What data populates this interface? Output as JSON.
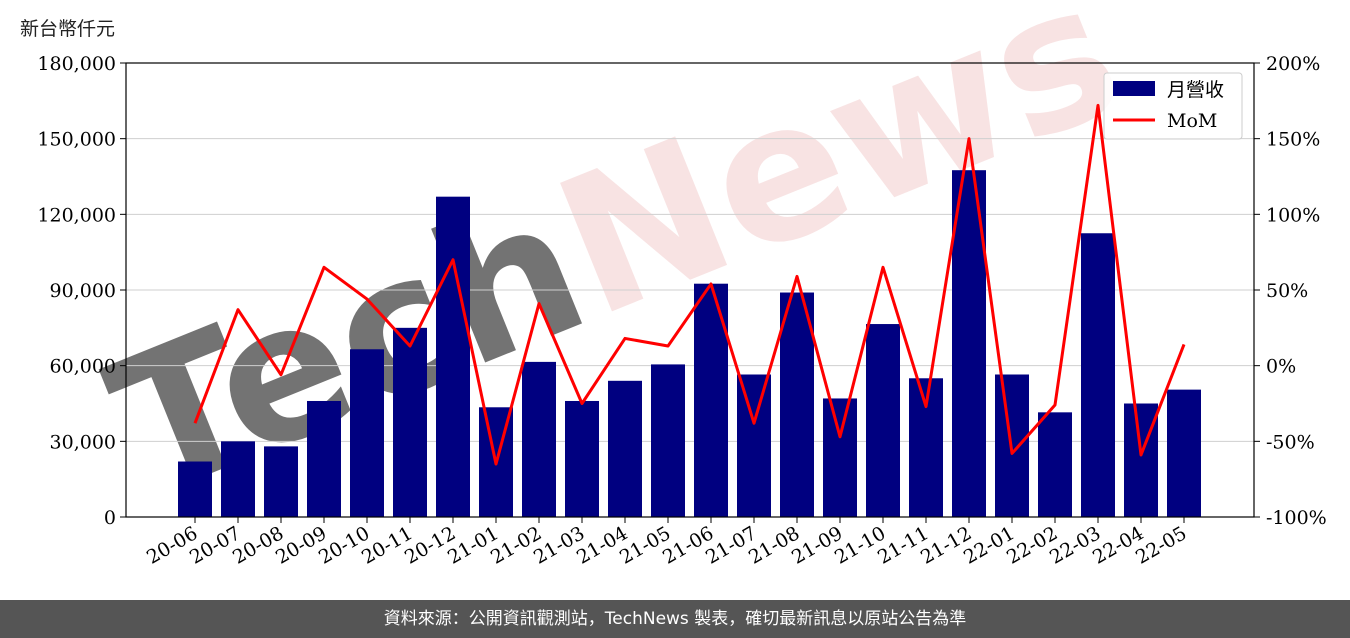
{
  "chart_data": {
    "type": "bar+line",
    "y_left_label": "新台幣仟元",
    "categories": [
      "20-06",
      "20-07",
      "20-08",
      "20-09",
      "20-10",
      "20-11",
      "20-12",
      "21-01",
      "21-02",
      "21-03",
      "21-04",
      "21-05",
      "21-06",
      "21-07",
      "21-08",
      "21-09",
      "21-10",
      "21-11",
      "21-12",
      "22-01",
      "22-02",
      "22-03",
      "22-04",
      "22-05"
    ],
    "series": [
      {
        "name": "月營收",
        "type": "bar",
        "axis": "left",
        "color": "#000080",
        "values": [
          22000,
          30000,
          28000,
          46000,
          66500,
          75000,
          127000,
          43500,
          61500,
          46000,
          54000,
          60500,
          92500,
          56500,
          89000,
          47000,
          76500,
          55000,
          137500,
          56500,
          41500,
          112500,
          45000,
          50500
        ]
      },
      {
        "name": "MoM",
        "type": "line",
        "axis": "right",
        "color": "#ff0000",
        "values": [
          -38,
          37,
          -6,
          65,
          44,
          13,
          70,
          -65,
          41,
          -25,
          18,
          13,
          54,
          -38,
          59,
          -47,
          65,
          -27,
          150,
          -58,
          -26,
          172,
          -59,
          14
        ]
      }
    ],
    "y_left": {
      "min": 0,
      "max": 180000,
      "ticks": [
        0,
        30000,
        60000,
        90000,
        120000,
        150000,
        180000
      ],
      "tick_labels": [
        "0",
        "30,000",
        "60,000",
        "90,000",
        "120,000",
        "150,000",
        "180,000"
      ]
    },
    "y_right": {
      "min": -100,
      "max": 200,
      "ticks": [
        -100,
        -50,
        0,
        50,
        100,
        150,
        200
      ],
      "tick_labels": [
        "-100%",
        "-50%",
        "0%",
        "50%",
        "100%",
        "150%",
        "200%"
      ]
    },
    "grid": "horizontal",
    "legend_position": "top-right",
    "watermark": "TechNews"
  },
  "footer": "資料來源：公開資訊觀測站，TechNews 製表，確切最新訊息以原站公告為準"
}
